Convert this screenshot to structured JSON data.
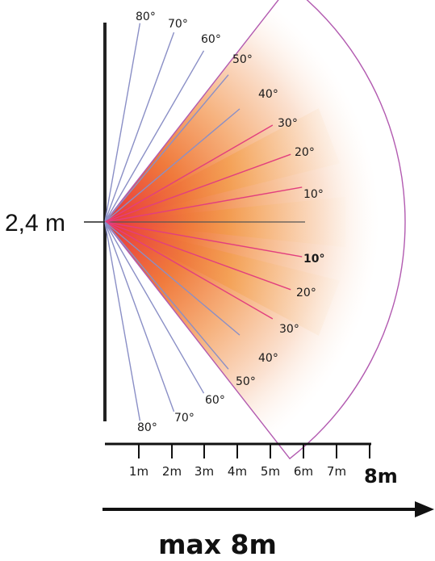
{
  "height_label": "2,4 m",
  "range_label": "max 8m",
  "range_end_label": "8m",
  "ruler": {
    "ticks": [
      "1m",
      "2m",
      "3m",
      "4m",
      "5m",
      "6m",
      "7m"
    ]
  },
  "upper_angles": [
    {
      "label": "80°",
      "angle": 80
    },
    {
      "label": "70°",
      "angle": 70
    },
    {
      "label": "60°",
      "angle": 60
    },
    {
      "label": "50°",
      "angle": 50
    },
    {
      "label": "40°",
      "angle": 40
    },
    {
      "label": "30°",
      "angle": 30
    },
    {
      "label": "20°",
      "angle": 20
    },
    {
      "label": "10°",
      "angle": 10
    }
  ],
  "lower_angles": [
    {
      "label": "10°",
      "angle": 10
    },
    {
      "label": "20°",
      "angle": 20
    },
    {
      "label": "30°",
      "angle": 30
    },
    {
      "label": "40°",
      "angle": 40
    },
    {
      "label": "50°",
      "angle": 50
    },
    {
      "label": "60°",
      "angle": 60
    },
    {
      "label": "70°",
      "angle": 70
    },
    {
      "label": "80°",
      "angle": 80
    }
  ],
  "colors": {
    "blue_line": "#8a8fc6",
    "pink_line": "#e23f7e",
    "fan_outline": "#b25ab0",
    "orange": "#f29b3a",
    "red": "#e8323c"
  }
}
